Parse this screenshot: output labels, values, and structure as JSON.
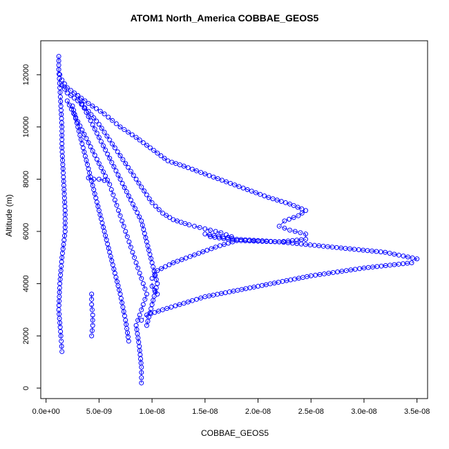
{
  "chart_data": {
    "type": "scatter",
    "title": "ATOM1 North_America COBBAE_GEOS5",
    "xlabel": "COBBAE_GEOS5",
    "ylabel": "Altitude (m)",
    "xlim": [
      -5e-10,
      3.6e-08
    ],
    "ylim": [
      -400,
      13300
    ],
    "x_ticks": [
      0,
      5e-09,
      1e-08,
      1.5e-08,
      2e-08,
      2.5e-08,
      3e-08,
      3.5e-08
    ],
    "x_tick_labels": [
      "0.0e+00",
      "5.0e-09",
      "1.0e-08",
      "1.5e-08",
      "2.0e-08",
      "2.5e-08",
      "3.0e-08",
      "3.5e-08"
    ],
    "y_ticks": [
      0,
      2000,
      4000,
      6000,
      8000,
      10000,
      12000
    ],
    "y_tick_labels": [
      "0",
      "2000",
      "4000",
      "6000",
      "8000",
      "10000",
      "12000"
    ],
    "marker": "open-circle",
    "line_style": "dash-dot",
    "color": "#0000ff",
    "series": [
      {
        "x": [
          1.3e-09,
          1.5e-09,
          2e-09,
          3e-09,
          4e-09,
          5.5e-09,
          7e-09,
          8.5e-09,
          9.5e-09,
          1.05e-08,
          1.15e-08,
          1.3e-08,
          1.5e-08,
          1.7e-08,
          1.9e-08,
          2.1e-08,
          2.3e-08,
          2.45e-08,
          2.38e-08,
          2.25e-08,
          2.2e-08,
          2.3e-08,
          2.45e-08,
          2.45e-08,
          2.2e-08,
          1.8e-08,
          1.55e-08,
          1.5e-08,
          1.8e-08,
          2.2e-08,
          2.7e-08,
          3.2e-08,
          3.5e-08,
          3.45e-08,
          3e-08,
          2.5e-08,
          2e-08,
          1.5e-08,
          1.1e-08,
          9.5e-09,
          9e-09
        ],
        "y": [
          12000,
          11800,
          11500,
          11200,
          10900,
          10500,
          10000,
          9600,
          9300,
          9000,
          8700,
          8500,
          8200,
          7900,
          7600,
          7300,
          7050,
          6800,
          6600,
          6400,
          6200,
          6050,
          5900,
          5700,
          5600,
          5650,
          5800,
          5900,
          5700,
          5600,
          5400,
          5200,
          4950,
          4800,
          4600,
          4300,
          3900,
          3500,
          3000,
          2800,
          2600
        ]
      },
      {
        "x": [
          1.5e-09,
          2e-09,
          3e-09,
          4e-09,
          5e-09,
          6e-09,
          7e-09,
          8e-09,
          9e-09,
          1e-08,
          1.1e-08,
          1.2e-08,
          1.35e-08,
          1.5e-08,
          1.65e-08,
          1.75e-08,
          1.8e-08,
          1.6e-08,
          1.4e-08,
          1.2e-08,
          1.05e-08,
          1e-08,
          1e-08,
          1.05e-08
        ],
        "y": [
          11600,
          11300,
          11000,
          10600,
          10100,
          9500,
          8900,
          8300,
          7700,
          7100,
          6700,
          6450,
          6250,
          6100,
          5950,
          5800,
          5650,
          5400,
          5100,
          4800,
          4500,
          4200,
          3900,
          3600
        ]
      },
      {
        "x": [
          2e-09,
          3e-09,
          4e-09,
          5e-09,
          6e-09,
          6.5e-09,
          7e-09,
          7.5e-09,
          8e-09,
          8.5e-09,
          9e-09,
          9.5e-09,
          9e-09,
          8.5e-09,
          8.8e-09,
          9e-09,
          9e-09
        ],
        "y": [
          11000,
          10200,
          9400,
          8600,
          7800,
          7200,
          6600,
          6000,
          5400,
          4800,
          4200,
          3600,
          3000,
          2400,
          1600,
          800,
          200
        ]
      },
      {
        "x": [
          1.2e-09,
          1.2e-09,
          1.3e-09,
          1.4e-09,
          1.5e-09,
          1.5e-09,
          1.6e-09,
          1.7e-09,
          1.8e-09,
          1.8e-09,
          1.5e-09,
          1.3e-09,
          1.2e-09,
          1.4e-09,
          1.5e-09
        ],
        "y": [
          12700,
          12200,
          11500,
          10800,
          10000,
          9200,
          8400,
          7600,
          6800,
          6000,
          5000,
          4000,
          3000,
          2000,
          1400
        ]
      },
      {
        "x": [
          2.5e-09,
          3e-09,
          3.5e-09,
          4e-09,
          4.5e-09,
          5e-09,
          5.5e-09,
          6e-09,
          6.5e-09,
          7e-09,
          7.5e-09,
          7.8e-09
        ],
        "y": [
          10800,
          10000,
          9200,
          8400,
          7600,
          6800,
          6000,
          5200,
          4400,
          3600,
          2600,
          1800
        ]
      },
      {
        "x": [
          3e-09,
          4e-09,
          5e-09,
          6e-09,
          7e-09,
          8e-09,
          9e-09,
          9.5e-09,
          1e-08,
          1.05e-08,
          1e-08,
          9.5e-09
        ],
        "y": [
          11200,
          10400,
          9600,
          8800,
          8000,
          7200,
          6400,
          5600,
          4800,
          4000,
          3200,
          2400
        ]
      },
      {
        "x": [
          4.3e-09,
          4.3e-09,
          4.4e-09,
          4.4e-09,
          4.3e-09
        ],
        "y": [
          3600,
          3200,
          2800,
          2400,
          2000
        ]
      },
      {
        "x": [
          4e-09,
          4.5e-09,
          5e-09,
          5.5e-09
        ],
        "y": [
          8050,
          8000,
          8000,
          7950
        ]
      }
    ]
  }
}
